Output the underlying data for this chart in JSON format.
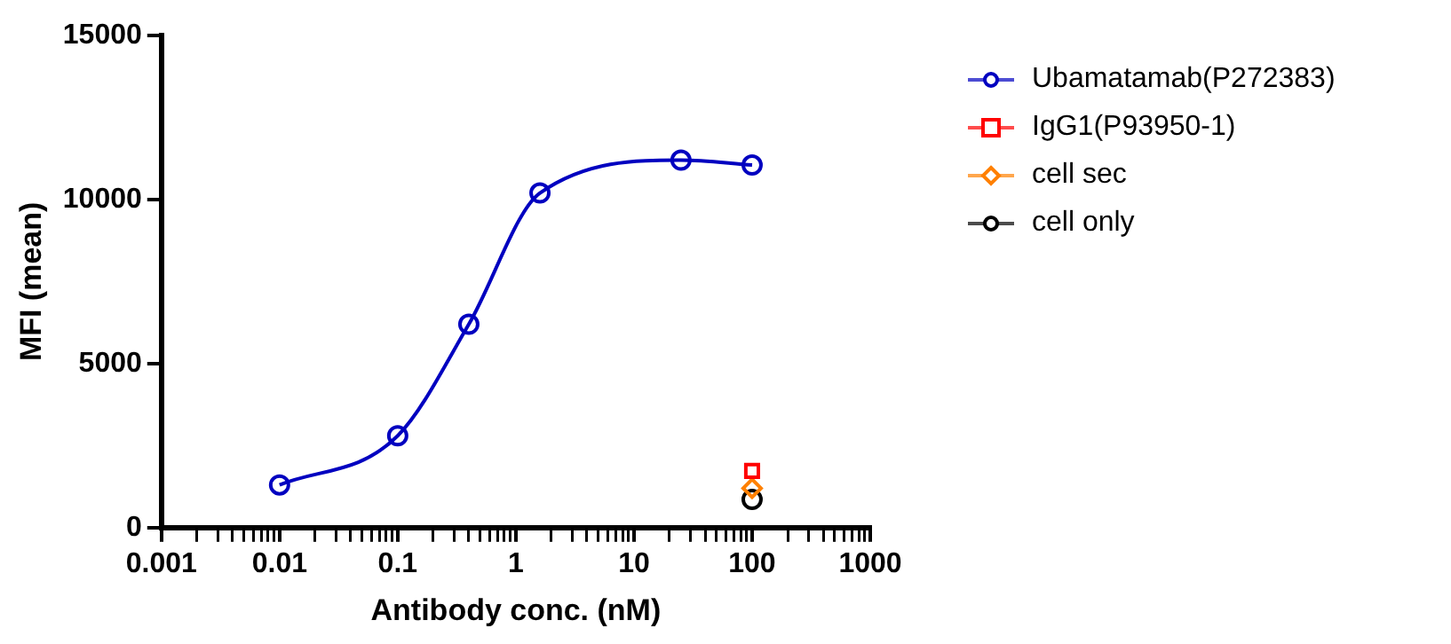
{
  "chart_data": {
    "type": "line",
    "xlabel": "Antibody conc. (nM)",
    "ylabel": "MFI (mean)",
    "log": "x",
    "xlim": [
      0.001,
      1000
    ],
    "xticks": [
      0.001,
      {
        "value": 0.002,
        "label": null
      },
      {
        "value": 0.003,
        "label": null
      },
      {
        "value": 0.004,
        "label": null
      },
      {
        "value": 0.005,
        "label": null
      },
      {
        "value": 0.006,
        "label": null
      },
      {
        "value": 0.007,
        "label": null
      },
      {
        "value": 0.008,
        "label": null
      },
      {
        "value": 0.009,
        "label": null
      },
      0.01,
      {
        "value": 0.02,
        "label": null
      },
      {
        "value": 0.03,
        "label": null
      },
      {
        "value": 0.04,
        "label": null
      },
      {
        "value": 0.05,
        "label": null
      },
      {
        "value": 0.06,
        "label": null
      },
      {
        "value": 0.07,
        "label": null
      },
      {
        "value": 0.08,
        "label": null
      },
      {
        "value": 0.09,
        "label": null
      },
      0.1,
      {
        "value": 0.2,
        "label": null
      },
      {
        "value": 0.3,
        "label": null
      },
      {
        "value": 0.4,
        "label": null
      },
      {
        "value": 0.5,
        "label": null
      },
      {
        "value": 0.6,
        "label": null
      },
      {
        "value": 0.7,
        "label": null
      },
      {
        "value": 0.8,
        "label": null
      },
      {
        "value": 0.9,
        "label": null
      },
      1,
      {
        "value": 2,
        "label": null
      },
      {
        "value": 3,
        "label": null
      },
      {
        "value": 4,
        "label": null
      },
      {
        "value": 5,
        "label": null
      },
      {
        "value": 6,
        "label": null
      },
      {
        "value": 7,
        "label": null
      },
      {
        "value": 8,
        "label": null
      },
      {
        "value": 9,
        "label": null
      },
      10,
      {
        "value": 20,
        "label": null
      },
      {
        "value": 30,
        "label": null
      },
      {
        "value": 40,
        "label": null
      },
      {
        "value": 50,
        "label": null
      },
      {
        "value": 60,
        "label": null
      },
      {
        "value": 70,
        "label": null
      },
      {
        "value": 80,
        "label": null
      },
      {
        "value": 90,
        "label": null
      },
      100,
      {
        "value": 200,
        "label": null
      },
      {
        "value": 300,
        "label": null
      },
      {
        "value": 400,
        "label": null
      },
      {
        "value": 500,
        "label": null
      },
      {
        "value": 600,
        "label": null
      },
      {
        "value": 700,
        "label": null
      },
      {
        "value": 800,
        "label": null
      },
      {
        "value": 900,
        "label": null
      },
      1000
    ],
    "ylim": [
      0,
      15000
    ],
    "yticks": [
      0,
      5000,
      10000,
      15000
    ],
    "grid": false,
    "legend": "right",
    "series": [
      {
        "name": "Ubamatamab(P272383)",
        "marker": "circle",
        "color": "#0000c0",
        "x": [
          0.01,
          0.1,
          0.4,
          1.6,
          25,
          100
        ],
        "values": [
          1300,
          2800,
          6200,
          10200,
          11200,
          11050
        ]
      },
      {
        "name": "IgG1(P93950-1)",
        "type": "scatter",
        "marker": "square",
        "color": "#ff0000",
        "x": [
          100
        ],
        "values": [
          1730
        ]
      },
      {
        "name": "cell sec",
        "type": "scatter",
        "marker": "diamond",
        "color": "#ff8000",
        "x": [
          100
        ],
        "values": [
          1200
        ]
      },
      {
        "name": "cell only",
        "type": "scatter",
        "marker": "circle",
        "color": "#000000",
        "x": [
          100
        ],
        "values": [
          860
        ]
      }
    ]
  }
}
